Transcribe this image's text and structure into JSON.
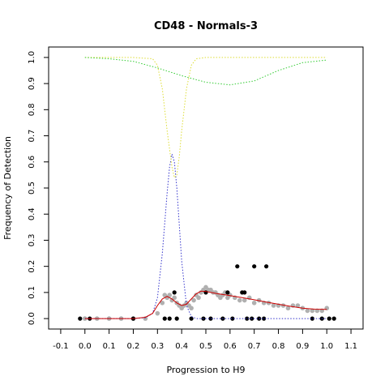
{
  "chart_data": {
    "type": "scatter",
    "title": "CD48 - Normals-3",
    "xlabel": "Progression to H9",
    "ylabel": "Frequency of Detection",
    "xlim": [
      -0.15,
      1.15
    ],
    "ylim": [
      -0.04,
      1.04
    ],
    "xticks": [
      "-0.1",
      "0.0",
      "0.1",
      "0.2",
      "0.3",
      "0.4",
      "0.5",
      "0.6",
      "0.7",
      "0.8",
      "0.9",
      "1.0",
      "1.1"
    ],
    "yticks": [
      "0.0",
      "0.1",
      "0.2",
      "0.3",
      "0.4",
      "0.5",
      "0.6",
      "0.7",
      "0.8",
      "0.9",
      "1.0"
    ],
    "colors": {
      "observed": "#000000",
      "smoothed": "#b0b0b0",
      "fit": "#cc0000",
      "blue_curve": "#3333cc",
      "green_curve": "#33cc33",
      "yellow_curve": "#dddd33"
    },
    "series": [
      {
        "color_key": "observed",
        "style": "points",
        "x": [
          -0.02,
          0.02,
          0.2,
          0.33,
          0.35,
          0.37,
          0.38,
          0.44,
          0.49,
          0.5,
          0.52,
          0.57,
          0.59,
          0.61,
          0.63,
          0.65,
          0.66,
          0.67,
          0.69,
          0.7,
          0.72,
          0.74,
          0.75,
          0.94,
          0.98,
          1.01,
          1.03
        ],
        "y": [
          0.0,
          0.0,
          0.0,
          0.0,
          0.0,
          0.1,
          0.0,
          0.0,
          0.0,
          0.1,
          0.0,
          0.0,
          0.1,
          0.0,
          0.2,
          0.1,
          0.1,
          0.0,
          0.0,
          0.2,
          0.0,
          0.0,
          0.2,
          0.0,
          0.0,
          0.0,
          0.0
        ]
      },
      {
        "color_key": "smoothed",
        "style": "points",
        "x": [
          0.0,
          0.05,
          0.1,
          0.15,
          0.2,
          0.25,
          0.3,
          0.32,
          0.33,
          0.34,
          0.35,
          0.36,
          0.37,
          0.38,
          0.39,
          0.4,
          0.41,
          0.42,
          0.43,
          0.44,
          0.45,
          0.46,
          0.47,
          0.48,
          0.49,
          0.5,
          0.51,
          0.52,
          0.53,
          0.54,
          0.55,
          0.56,
          0.57,
          0.58,
          0.59,
          0.6,
          0.62,
          0.64,
          0.66,
          0.68,
          0.7,
          0.72,
          0.74,
          0.76,
          0.78,
          0.8,
          0.82,
          0.84,
          0.86,
          0.88,
          0.9,
          0.92,
          0.94,
          0.96,
          0.98,
          1.0
        ],
        "y": [
          0.0,
          0.0,
          0.0,
          0.0,
          0.0,
          0.0,
          0.02,
          0.06,
          0.09,
          0.08,
          0.09,
          0.07,
          0.08,
          0.06,
          0.05,
          0.04,
          0.05,
          0.06,
          0.05,
          0.04,
          0.07,
          0.09,
          0.08,
          0.1,
          0.11,
          0.12,
          0.11,
          0.11,
          0.1,
          0.1,
          0.09,
          0.08,
          0.09,
          0.1,
          0.08,
          0.09,
          0.08,
          0.07,
          0.07,
          0.08,
          0.06,
          0.07,
          0.06,
          0.06,
          0.05,
          0.05,
          0.05,
          0.04,
          0.05,
          0.05,
          0.04,
          0.03,
          0.03,
          0.03,
          0.03,
          0.04
        ]
      },
      {
        "color_key": "fit",
        "style": "solid",
        "x": [
          0.0,
          0.1,
          0.2,
          0.25,
          0.28,
          0.3,
          0.32,
          0.34,
          0.36,
          0.38,
          0.4,
          0.42,
          0.44,
          0.46,
          0.48,
          0.5,
          0.55,
          0.6,
          0.65,
          0.7,
          0.75,
          0.8,
          0.85,
          0.9,
          0.95,
          1.0
        ],
        "y": [
          0.0,
          0.0,
          0.0,
          0.005,
          0.02,
          0.05,
          0.075,
          0.085,
          0.075,
          0.06,
          0.05,
          0.055,
          0.075,
          0.095,
          0.105,
          0.104,
          0.095,
          0.088,
          0.08,
          0.072,
          0.063,
          0.055,
          0.047,
          0.04,
          0.036,
          0.035
        ]
      },
      {
        "color_key": "blue_curve",
        "style": "dotted",
        "x": [
          0.0,
          0.2,
          0.25,
          0.28,
          0.3,
          0.32,
          0.34,
          0.35,
          0.36,
          0.37,
          0.38,
          0.39,
          0.4,
          0.42,
          0.44,
          0.46,
          0.5,
          0.6,
          1.0
        ],
        "y": [
          0.0,
          0.0,
          0.003,
          0.02,
          0.08,
          0.25,
          0.48,
          0.58,
          0.63,
          0.6,
          0.5,
          0.36,
          0.22,
          0.05,
          0.008,
          0.0,
          0.0,
          0.0,
          0.0
        ]
      },
      {
        "color_key": "green_curve",
        "style": "dotted",
        "x": [
          0.0,
          0.1,
          0.2,
          0.3,
          0.4,
          0.5,
          0.6,
          0.7,
          0.8,
          0.9,
          1.0
        ],
        "y": [
          1.0,
          0.995,
          0.985,
          0.96,
          0.93,
          0.905,
          0.895,
          0.91,
          0.95,
          0.98,
          0.99
        ]
      },
      {
        "color_key": "yellow_curve",
        "style": "dotted",
        "x": [
          0.0,
          0.2,
          0.28,
          0.3,
          0.32,
          0.34,
          0.36,
          0.37,
          0.38,
          0.39,
          0.4,
          0.42,
          0.44,
          0.46,
          0.5,
          1.0
        ],
        "y": [
          1.0,
          1.0,
          0.995,
          0.97,
          0.88,
          0.72,
          0.58,
          0.54,
          0.55,
          0.62,
          0.72,
          0.88,
          0.97,
          0.995,
          1.0,
          1.0
        ]
      }
    ]
  }
}
